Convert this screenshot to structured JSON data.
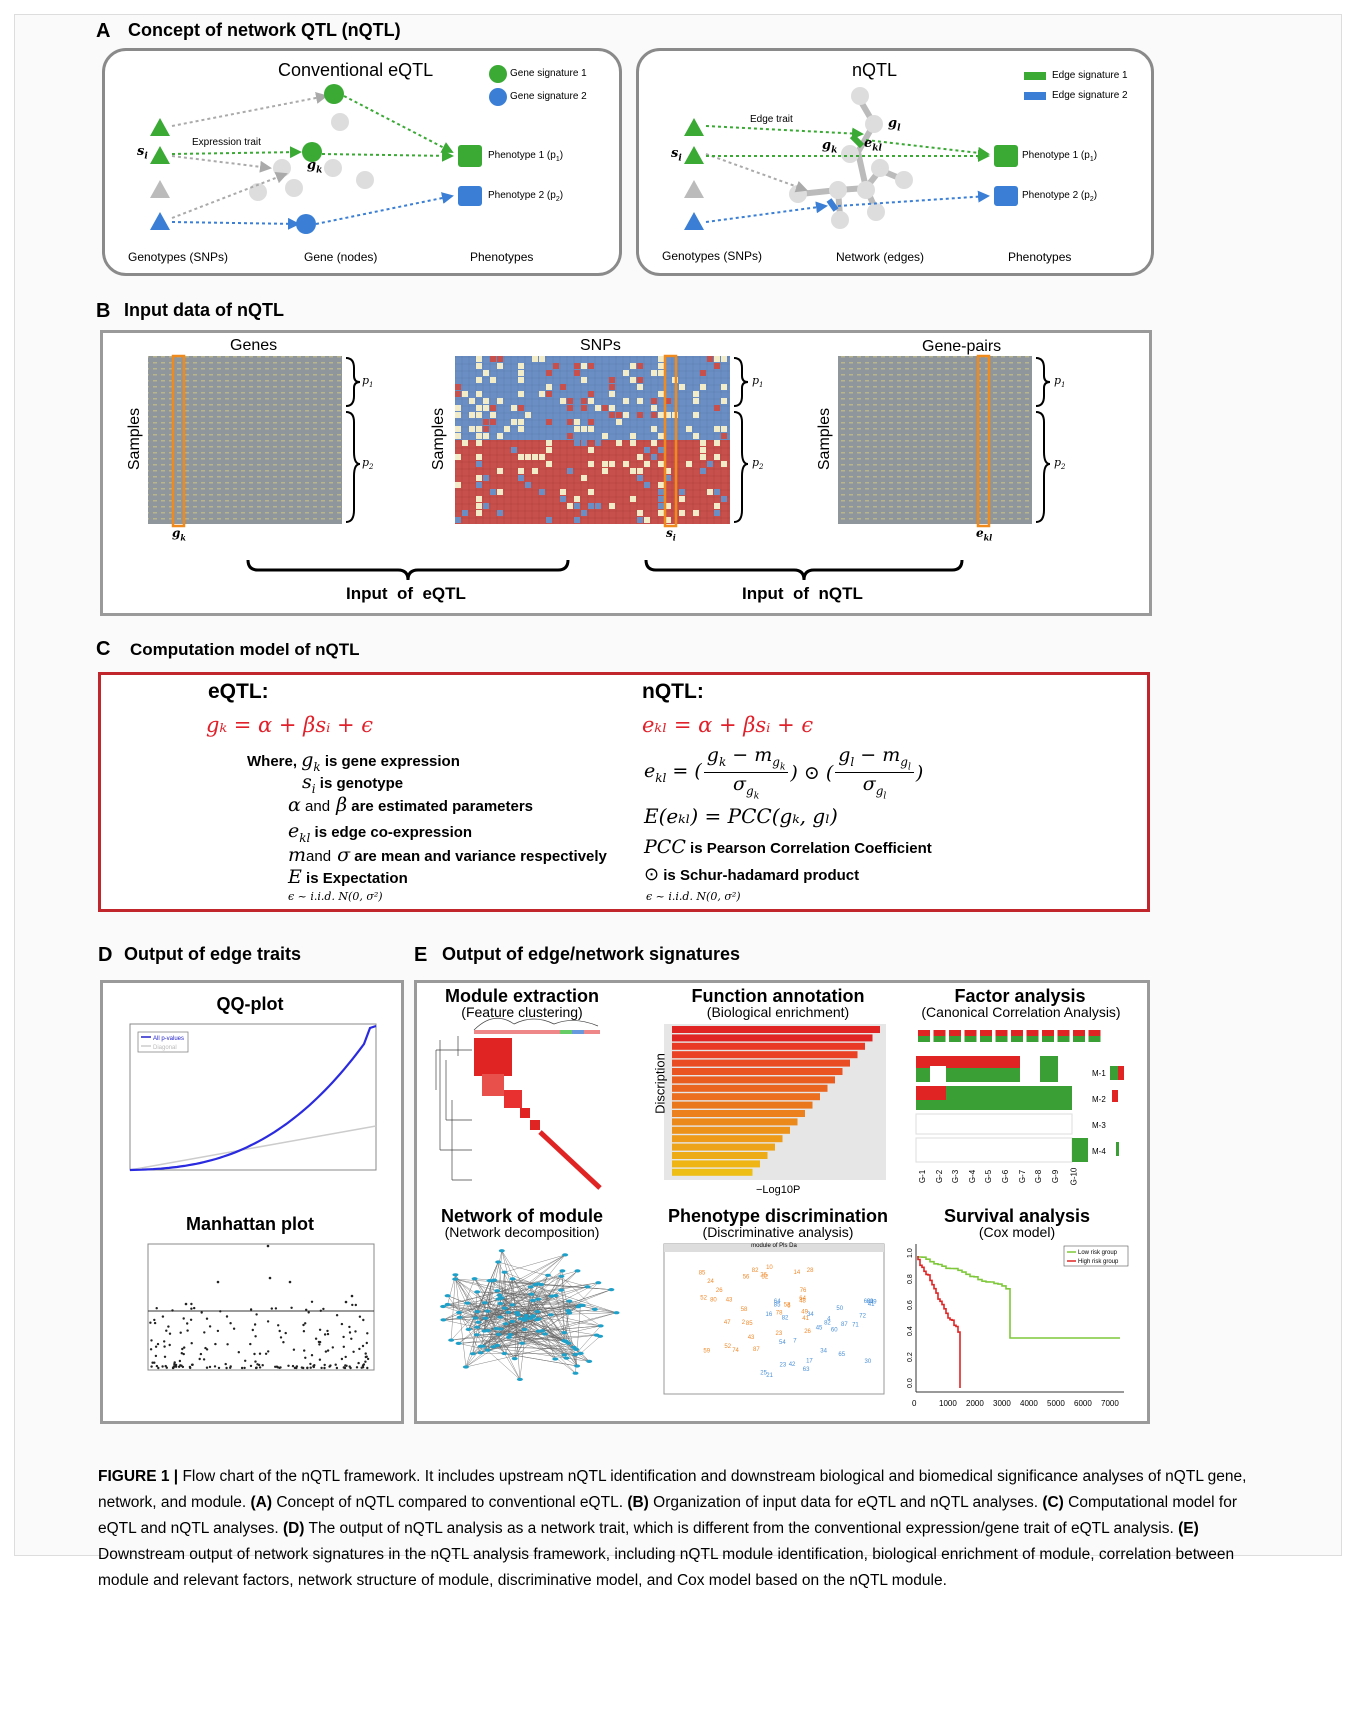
{
  "panelA": {
    "letter": "A",
    "title": "Concept of network QTL  (nQTL)",
    "left": {
      "title": "Conventional  eQTL",
      "legend1": "Gene signature 1",
      "legend2": "Gene signature 2",
      "expr_trait": "Expression trait",
      "si": "s",
      "si_sub": "i",
      "gk": "g",
      "gk_sub": "k",
      "pheno1": "Phenotype 1 (p",
      "pheno1_sub": "1",
      "pheno2": "Phenotype 2 (p",
      "pheno2_sub": "2",
      "col1": "Genotypes (SNPs)",
      "col2": "Gene (nodes)",
      "col3": "Phenotypes",
      "colors": {
        "green": "#3aaa35",
        "blue": "#3a7fd5",
        "grey": "#cccccc"
      }
    },
    "right": {
      "title": "nQTL",
      "legend1": "Edge signature 1",
      "legend2": "Edge signature 2",
      "edge_trait": "Edge trait",
      "si": "s",
      "si_sub": "i",
      "gk": "g",
      "gk_sub": "k",
      "gl": "g",
      "gl_sub": "l",
      "ekl": "e",
      "ekl_sub": "kl",
      "pheno1": "Phenotype 1 (p",
      "pheno1_sub": "1",
      "pheno2": "Phenotype 2 (p",
      "pheno2_sub": "2",
      "col1": "Genotypes (SNPs)",
      "col2": "Network (edges)",
      "col3": "Phenotypes"
    }
  },
  "panelB": {
    "letter": "B",
    "title": "Input data of nQTL",
    "genes": "Genes",
    "snps": "SNPs",
    "pairs": "Gene-pairs",
    "samples": "Samples",
    "p1": "p",
    "p1_sub": "1",
    "p2": "p",
    "p2_sub": "2",
    "gk": "g",
    "gk_sub": "k",
    "si": "s",
    "si_sub": "i",
    "ekl": "e",
    "ekl_sub": "kl",
    "input_eqtl": "Input  of  eQTL",
    "input_nqtl": "Input  of  nQTL"
  },
  "panelC": {
    "letter": "C",
    "title": "Computation model of nQTL",
    "eqtl_head": "eQTL:",
    "nqtl_head": "nQTL:",
    "eq_left": "gₖ = α + βsᵢ + ϵ",
    "eq_right": "eₖₗ = α + βsᵢ + ϵ",
    "where": "Where,",
    "d1": "is gene expression",
    "d2": "is genotype",
    "d3a": "and",
    "d3b": "are estimated parameters",
    "d4": "is edge co-expression",
    "d5a": "and",
    "d5b": "are mean and variance respectively",
    "d6": "is Expectation",
    "iid": "ϵ ~ i.i.d. N(0, σ²)",
    "expect": "E(eₖₗ) = PCC(gₖ, gₗ)",
    "pcc": "PCC",
    "pcc_desc": "is Pearson Correlation Coefficient",
    "odot_desc": "is Schur-hadamard product"
  },
  "panelD": {
    "letter": "D",
    "title": "Output of edge traits",
    "qq_title": "QQ-plot",
    "qq_legend1": "All p-values",
    "qq_legend2": "Diagonal",
    "manhattan_title": "Manhattan plot"
  },
  "panelE": {
    "letter": "E",
    "title": "Output of edge/network signatures",
    "module_title": "Module extraction",
    "module_sub": "(Feature clustering)",
    "func_title": "Function annotation",
    "func_sub": "(Biological enrichment)",
    "func_ylabel": "Discription",
    "func_xlabel": "−Log10P",
    "factor_title": "Factor analysis",
    "factor_sub": "(Canonical Correlation Analysis)",
    "factor_rows": [
      "M-1",
      "M-2",
      "M-3",
      "M-4"
    ],
    "factor_cols": [
      "G-1",
      "G-2",
      "G-3",
      "G-4",
      "G-5",
      "G-6",
      "G-7",
      "G-8",
      "G-9",
      "G-10"
    ],
    "network_title": "Network of module",
    "network_sub": "(Network decomposition)",
    "pheno_title": "Phenotype discrimination",
    "pheno_sub": "(Discriminative analysis)",
    "pheno_inner_title": "module of Pls Da",
    "surv_title": "Survival analysis",
    "surv_sub": "(Cox model)",
    "surv_low": "Low risk group",
    "surv_high": "High risk group",
    "surv_xticks": [
      "0",
      "1000",
      "2000",
      "3000",
      "4000",
      "5000",
      "6000",
      "7000"
    ],
    "surv_yticks": [
      "1.0",
      "0.8",
      "0.6",
      "0.4",
      "0.2",
      "0.0"
    ]
  },
  "caption": {
    "label": "FIGURE 1 |",
    "text1": " Flow chart of the nQTL framework. It includes upstream nQTL identification and downstream biological and biomedical significance analyses of nQTL gene, network, and module. ",
    "a": "(A)",
    "ta": " Concept of nQTL compared to conventional eQTL. ",
    "b": "(B)",
    "tb": " Organization of input data for eQTL and nQTL analyses. ",
    "c": "(C)",
    "tc": " Computational model for eQTL and nQTL analyses. ",
    "d": "(D)",
    "td": " The output of nQTL analysis as a network trait, which is different from the conventional expression/gene trait of eQTL analysis. ",
    "e": "(E)",
    "te": " Downstream output of network signatures in the nQTL analysis framework, including nQTL module identification, biological enrichment of module, correlation between module and relevant factors, network structure of module, discriminative model, and Cox model based on the nQTL module."
  }
}
